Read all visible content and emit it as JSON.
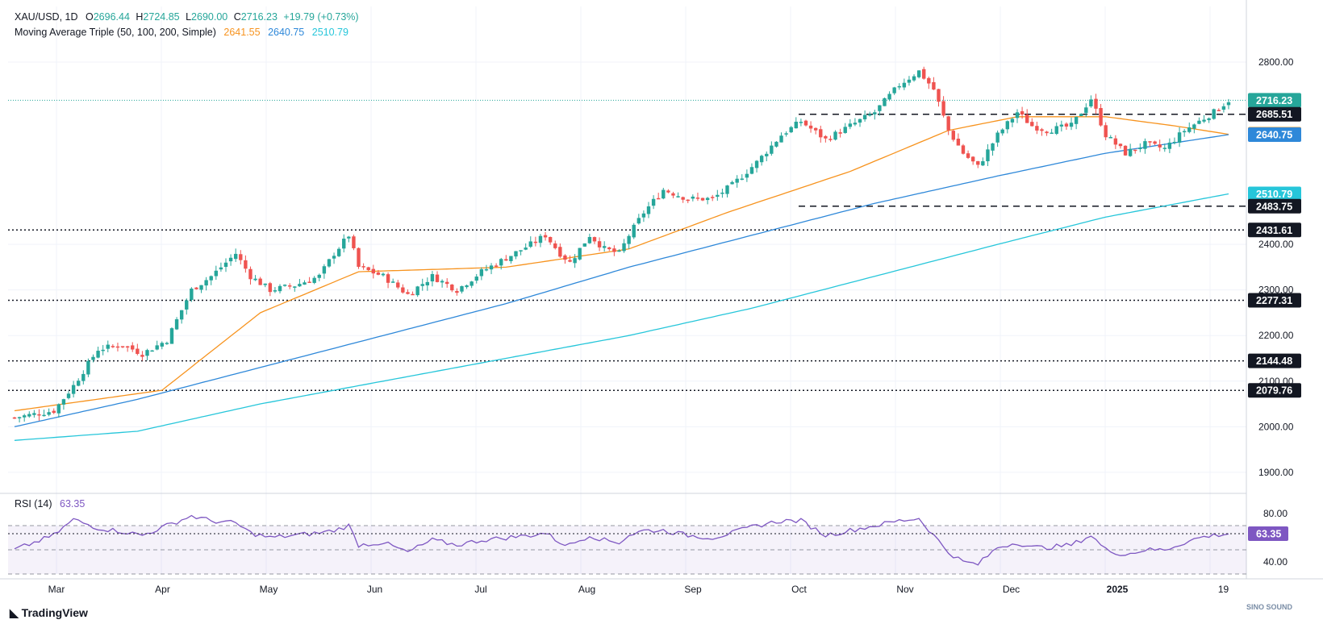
{
  "header": {
    "symbol": "XAU/USD, 1D",
    "open_label": "O",
    "open": "2696.44",
    "high_label": "H",
    "high": "2724.85",
    "low_label": "L",
    "low": "2690.00",
    "close_label": "C",
    "close": "2716.23",
    "change": "+19.79 (+0.73%)",
    "ma_title": "Moving Average Triple (50, 100, 200, Simple)",
    "ma50": "2641.55",
    "ma100": "2640.75",
    "ma200": "2510.79",
    "rsi_title": "RSI (14)",
    "rsi_value": "63.35"
  },
  "colors": {
    "up": "#26a69a",
    "down": "#ef5350",
    "ma50": "#f7931e",
    "ma100": "#2e88d9",
    "ma200": "#26c6da",
    "rsi": "#7e57c2",
    "last_price": "#26a69a",
    "label_dark": "#131722"
  },
  "footer": {
    "brand": "TradingView",
    "watermark": "SINO SOUND"
  },
  "chart_data": [
    {
      "type": "candlestick",
      "title": "XAU/USD, 1D",
      "ylim": [
        1875,
        2830
      ],
      "yticks": [
        1900,
        2000,
        2100,
        2200,
        2300,
        2400,
        2800
      ],
      "xticks": [
        "Mar",
        "Apr",
        "May",
        "Jun",
        "Jul",
        "Aug",
        "Sep",
        "Oct",
        "Nov",
        "Dec",
        "2025",
        "19"
      ],
      "price_anchors": [
        [
          0,
          2020
        ],
        [
          8,
          2035
        ],
        [
          12,
          2090
        ],
        [
          17,
          2170
        ],
        [
          22,
          2180
        ],
        [
          26,
          2160
        ],
        [
          31,
          2190
        ],
        [
          36,
          2300
        ],
        [
          40,
          2330
        ],
        [
          45,
          2380
        ],
        [
          48,
          2330
        ],
        [
          52,
          2300
        ],
        [
          57,
          2310
        ],
        [
          62,
          2330
        ],
        [
          65,
          2380
        ],
        [
          68,
          2420
        ],
        [
          70,
          2350
        ],
        [
          75,
          2330
        ],
        [
          80,
          2290
        ],
        [
          85,
          2330
        ],
        [
          90,
          2300
        ],
        [
          95,
          2340
        ],
        [
          100,
          2370
        ],
        [
          105,
          2400
        ],
        [
          108,
          2420
        ],
        [
          111,
          2380
        ],
        [
          113,
          2360
        ],
        [
          117,
          2420
        ],
        [
          120,
          2390
        ],
        [
          123,
          2380
        ],
        [
          125,
          2420
        ],
        [
          128,
          2470
        ],
        [
          132,
          2520
        ],
        [
          137,
          2500
        ],
        [
          142,
          2500
        ],
        [
          146,
          2530
        ],
        [
          151,
          2580
        ],
        [
          156,
          2640
        ],
        [
          160,
          2670
        ],
        [
          165,
          2630
        ],
        [
          170,
          2660
        ],
        [
          175,
          2690
        ],
        [
          180,
          2750
        ],
        [
          184,
          2780
        ],
        [
          187,
          2740
        ],
        [
          190,
          2650
        ],
        [
          193,
          2600
        ],
        [
          196,
          2570
        ],
        [
          200,
          2640
        ],
        [
          204,
          2690
        ],
        [
          207,
          2660
        ],
        [
          210,
          2650
        ],
        [
          215,
          2660
        ],
        [
          219,
          2720
        ],
        [
          222,
          2640
        ],
        [
          226,
          2600
        ],
        [
          230,
          2620
        ],
        [
          234,
          2610
        ],
        [
          238,
          2650
        ],
        [
          241,
          2670
        ],
        [
          244,
          2690
        ],
        [
          247,
          2716
        ]
      ],
      "ma_series": [
        {
          "name": "MA 50",
          "value": "2641.55",
          "color": "#f7931e",
          "anchors": [
            [
              0,
              2035
            ],
            [
              30,
              2080
            ],
            [
              50,
              2250
            ],
            [
              70,
              2340
            ],
            [
              100,
              2350
            ],
            [
              125,
              2390
            ],
            [
              145,
              2470
            ],
            [
              170,
              2560
            ],
            [
              190,
              2650
            ],
            [
              204,
              2680
            ],
            [
              222,
              2680
            ],
            [
              236,
              2660
            ],
            [
              247,
              2641.55
            ]
          ]
        },
        {
          "name": "MA 100",
          "value": "2640.75",
          "color": "#2e88d9",
          "anchors": [
            [
              0,
              2000
            ],
            [
              25,
              2060
            ],
            [
              50,
              2130
            ],
            [
              75,
              2200
            ],
            [
              100,
              2270
            ],
            [
              125,
              2350
            ],
            [
              150,
              2420
            ],
            [
              175,
              2490
            ],
            [
              200,
              2550
            ],
            [
              222,
              2600
            ],
            [
              247,
              2640.75
            ]
          ]
        },
        {
          "name": "MA 200",
          "value": "2510.79",
          "color": "#26c6da",
          "anchors": [
            [
              0,
              1970
            ],
            [
              25,
              1990
            ],
            [
              50,
              2050
            ],
            [
              75,
              2100
            ],
            [
              100,
              2150
            ],
            [
              125,
              2200
            ],
            [
              150,
              2260
            ],
            [
              175,
              2330
            ],
            [
              200,
              2400
            ],
            [
              222,
              2460
            ],
            [
              247,
              2510.79
            ]
          ]
        }
      ],
      "levels": [
        {
          "value": "2716.23",
          "style": "last-price",
          "color": "#26a69a"
        },
        {
          "value": "2685.51",
          "style": "dashed",
          "color": "#131722"
        },
        {
          "value": "2641.55",
          "style": "label",
          "color": "#f7931e"
        },
        {
          "value": "2640.75",
          "style": "label",
          "color": "#2e88d9"
        },
        {
          "value": "2510.79",
          "style": "label",
          "color": "#26c6da"
        },
        {
          "value": "2483.75",
          "style": "dashed",
          "color": "#131722"
        },
        {
          "value": "2431.61",
          "style": "dotted",
          "color": "#131722"
        },
        {
          "value": "2277.31",
          "style": "dotted",
          "color": "#131722"
        },
        {
          "value": "2144.48",
          "style": "dotted",
          "color": "#131722"
        },
        {
          "value": "2079.76",
          "style": "dotted",
          "color": "#131722"
        }
      ]
    },
    {
      "type": "line",
      "title": "RSI (14)",
      "ylim": [
        30,
        90
      ],
      "yticks": [
        40,
        80
      ],
      "bands": [
        70,
        50,
        30
      ],
      "last_value": "63.35",
      "anchors": [
        [
          0,
          50
        ],
        [
          8,
          62
        ],
        [
          12,
          75
        ],
        [
          17,
          68
        ],
        [
          22,
          65
        ],
        [
          26,
          62
        ],
        [
          31,
          70
        ],
        [
          36,
          78
        ],
        [
          40,
          74
        ],
        [
          45,
          72
        ],
        [
          48,
          64
        ],
        [
          52,
          60
        ],
        [
          57,
          62
        ],
        [
          62,
          64
        ],
        [
          65,
          66
        ],
        [
          68,
          70
        ],
        [
          70,
          54
        ],
        [
          75,
          56
        ],
        [
          80,
          48
        ],
        [
          85,
          58
        ],
        [
          90,
          54
        ],
        [
          95,
          58
        ],
        [
          100,
          60
        ],
        [
          105,
          62
        ],
        [
          108,
          64
        ],
        [
          111,
          56
        ],
        [
          113,
          54
        ],
        [
          117,
          62
        ],
        [
          120,
          58
        ],
        [
          123,
          56
        ],
        [
          125,
          62
        ],
        [
          128,
          66
        ],
        [
          132,
          66
        ],
        [
          137,
          62
        ],
        [
          142,
          60
        ],
        [
          146,
          64
        ],
        [
          151,
          70
        ],
        [
          156,
          74
        ],
        [
          160,
          74
        ],
        [
          165,
          62
        ],
        [
          170,
          66
        ],
        [
          175,
          70
        ],
        [
          180,
          74
        ],
        [
          184,
          76
        ],
        [
          187,
          62
        ],
        [
          190,
          48
        ],
        [
          193,
          40
        ],
        [
          196,
          38
        ],
        [
          200,
          52
        ],
        [
          204,
          56
        ],
        [
          207,
          52
        ],
        [
          210,
          52
        ],
        [
          215,
          54
        ],
        [
          219,
          62
        ],
        [
          222,
          50
        ],
        [
          226,
          46
        ],
        [
          230,
          50
        ],
        [
          234,
          50
        ],
        [
          238,
          56
        ],
        [
          241,
          60
        ],
        [
          244,
          62
        ],
        [
          247,
          63.35
        ]
      ]
    }
  ]
}
